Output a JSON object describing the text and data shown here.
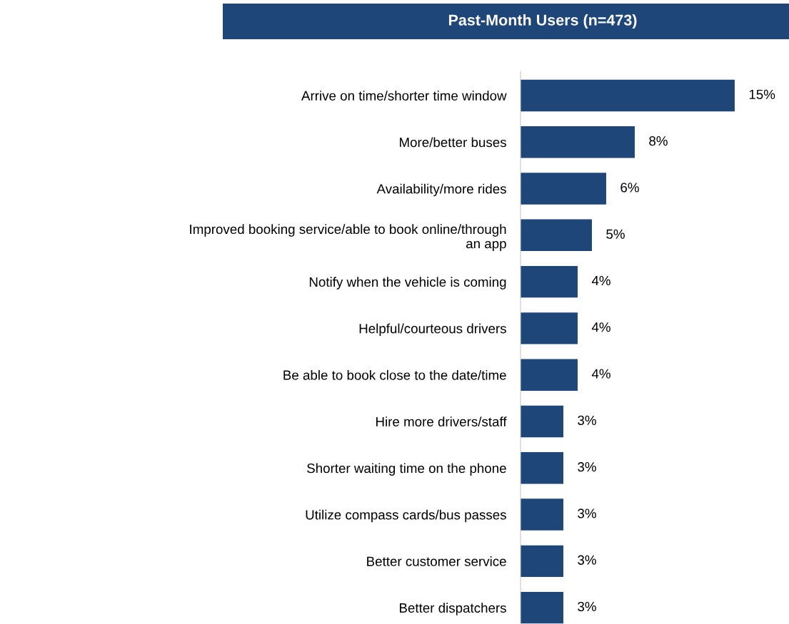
{
  "chart_data": {
    "type": "bar",
    "orientation": "horizontal",
    "title": "Past-Month Users (n=473)",
    "categories": [
      "Arrive on time/shorter time window",
      "More/better buses",
      "Availability/more rides",
      "Improved booking service/able to book online/through\nan app",
      "Notify when the vehicle is coming",
      "Helpful/courteous drivers",
      "Be able to book close to the date/time",
      "Hire more drivers/staff",
      "Shorter waiting time on the phone",
      "Utilize compass cards/bus passes",
      "Better customer service",
      "Better dispatchers"
    ],
    "values": [
      15,
      8,
      6,
      5,
      4,
      4,
      4,
      3,
      3,
      3,
      3,
      3
    ],
    "value_labels": [
      "15%",
      "8%",
      "6%",
      "5%",
      "4%",
      "4%",
      "4%",
      "3%",
      "3%",
      "3%",
      "3%",
      "3%"
    ],
    "color": "#1f4678",
    "grid": false,
    "legend": false
  }
}
